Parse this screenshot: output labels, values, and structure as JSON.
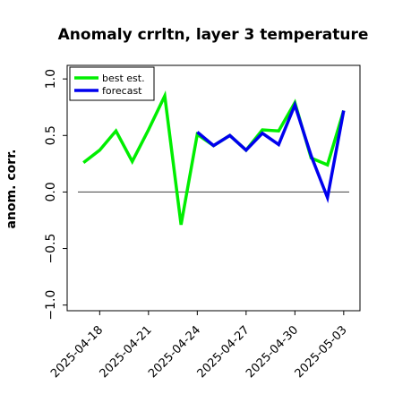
{
  "chart_data": {
    "type": "line",
    "title": "Anomaly crrltn, layer 3 temperature",
    "ylabel": "anom. corr.",
    "xlabel": "",
    "ylim": [
      -1.05,
      1.12
    ],
    "xlim": [
      "2025-04-16",
      "2025-05-04"
    ],
    "yticks": [
      -1.0,
      -0.5,
      0.0,
      0.5,
      1.0
    ],
    "yticklabels": [
      "−1.0",
      "−0.5",
      "0.0",
      "0.5",
      "1.0"
    ],
    "xticks": [
      "2025-04-18",
      "2025-04-21",
      "2025-04-24",
      "2025-04-27",
      "2025-04-30",
      "2025-05-03"
    ],
    "highlight_tick": "2025-04-24",
    "highlight_color": "#2e8b2e",
    "zero_line": true,
    "grid": false,
    "legend_position": "top-left",
    "series": [
      {
        "name": "best est.",
        "color": "#00ee00",
        "x": [
          "2025-04-17",
          "2025-04-18",
          "2025-04-19",
          "2025-04-20",
          "2025-04-21",
          "2025-04-22",
          "2025-04-23",
          "2025-04-24",
          "2025-04-25",
          "2025-04-26",
          "2025-04-27",
          "2025-04-28",
          "2025-04-29",
          "2025-04-30",
          "2025-05-01",
          "2025-05-02",
          "2025-05-03"
        ],
        "values": [
          0.26,
          0.37,
          0.54,
          0.27,
          0.55,
          0.85,
          -0.29,
          0.51,
          0.41,
          0.5,
          0.37,
          0.55,
          0.54,
          0.79,
          0.3,
          0.24,
          0.72
        ]
      },
      {
        "name": "forecast",
        "color": "#0000ee",
        "x": [
          "2025-04-24",
          "2025-04-25",
          "2025-04-26",
          "2025-04-27",
          "2025-04-28",
          "2025-04-29",
          "2025-04-30",
          "2025-05-01",
          "2025-05-02",
          "2025-05-03"
        ],
        "values": [
          0.53,
          0.41,
          0.5,
          0.37,
          0.52,
          0.42,
          0.77,
          0.32,
          -0.05,
          0.72
        ]
      }
    ]
  }
}
